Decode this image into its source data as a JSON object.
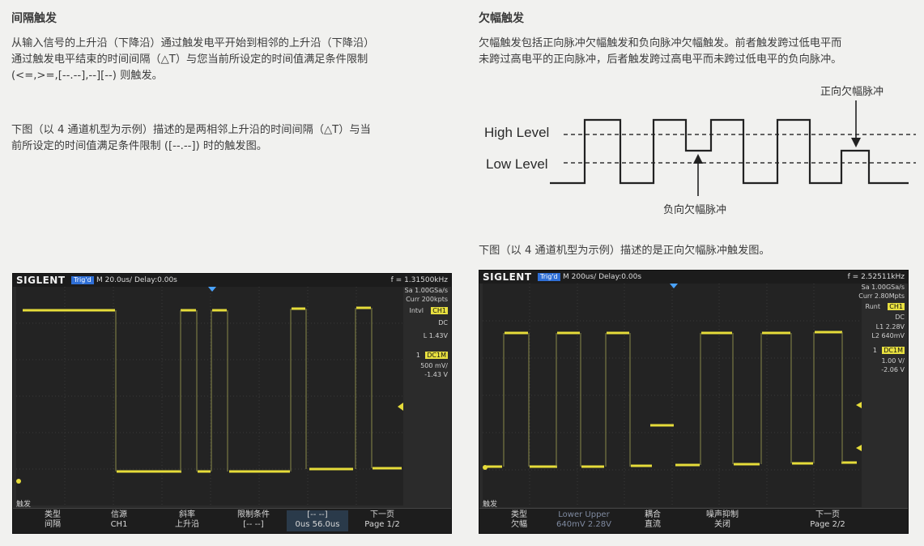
{
  "left": {
    "title": "间隔触发",
    "para1_lines": [
      "从输入信号的上升沿（下降沿）通过触发电平开始到相邻的上升沿（下降沿）",
      "通过触发电平结束的时间间隔（△T）与您当前所设定的时间值满足条件限制",
      "(<=,>=,[--.--],--][--) 则触发。"
    ],
    "para2_lines": [
      "下图（以 4 通道机型为示例）描述的是两相邻上升沿的时间间隔（△T）与当",
      "前所设定的时间值满足条件限制 ([--.--]) 时的触发图。"
    ]
  },
  "right": {
    "title": "欠幅触发",
    "para1_lines": [
      "欠幅触发包括正向脉冲欠幅触发和负向脉冲欠幅触发。前者触发跨过低电平而",
      "未跨过高电平的正向脉冲，后者触发跨过高电平而未跨过低电平的负向脉冲。"
    ],
    "diagram": {
      "high_label": "High Level",
      "low_label": "Low Level",
      "pos_runt_label": "正向欠幅脉冲",
      "neg_runt_label": "负向欠幅脉冲"
    },
    "para3": "下图（以 4 通道机型为示例）描述的是正向欠幅脉冲触发图。"
  },
  "scope1": {
    "brand": "SIGLENT",
    "trig": "Trig'd",
    "timebase": "M 20.0us/  Delay:0.00s",
    "freq": "f = 1.31500kHz",
    "side": {
      "sa": "Sa 1.00GSa/s",
      "curr": "Curr 200kpts",
      "mode": "Intvl",
      "ch": "CH1",
      "slope": "DC",
      "level": "L   1.43V",
      "coupling_num": "1",
      "coupling": "DC1M",
      "vdiv": "500 mV/",
      "offset": "-1.43 V"
    },
    "menu_title": "触发",
    "softkeys": [
      {
        "top": "类型",
        "bottom": "间隔"
      },
      {
        "top": "信源",
        "bottom": "CH1"
      },
      {
        "top": "斜率",
        "bottom": "上升沿"
      },
      {
        "top": "限制条件",
        "bottom": "[-- --]"
      },
      {
        "top": "[-- --]",
        "bottom": "0us  56.0us"
      },
      {
        "top": "下一页",
        "bottom": "Page 1/2"
      }
    ]
  },
  "scope2": {
    "brand": "SIGLENT",
    "trig": "Trig'd",
    "timebase": "M 200us/  Delay:0.00s",
    "freq": "f = 2.52511kHz",
    "side": {
      "sa": "Sa 1.00GSa/s",
      "curr": "Curr 2.80Mpts",
      "mode": "Runt",
      "ch": "CH1",
      "slope": "DC",
      "l1": "L1   2.28V",
      "l2": "L2   640mV",
      "coupling_num": "1",
      "coupling": "DC1M",
      "vdiv": "1.00 V/",
      "offset": "-2.06 V"
    },
    "menu_title": "触发",
    "softkeys": [
      {
        "top": "类型",
        "bottom": "欠幅"
      },
      {
        "top": "Lower  Upper",
        "bottom": "640mV  2.28V"
      },
      {
        "top": "耦合",
        "bottom": "直流"
      },
      {
        "top": "噪声抑制",
        "bottom": "关闭"
      },
      {
        "top": "下一页",
        "bottom": "Page 2/2"
      }
    ]
  },
  "colors": {
    "trace": "#e6dc3a",
    "grid": "#3d3d3d",
    "accent": "#2f6fd6"
  }
}
